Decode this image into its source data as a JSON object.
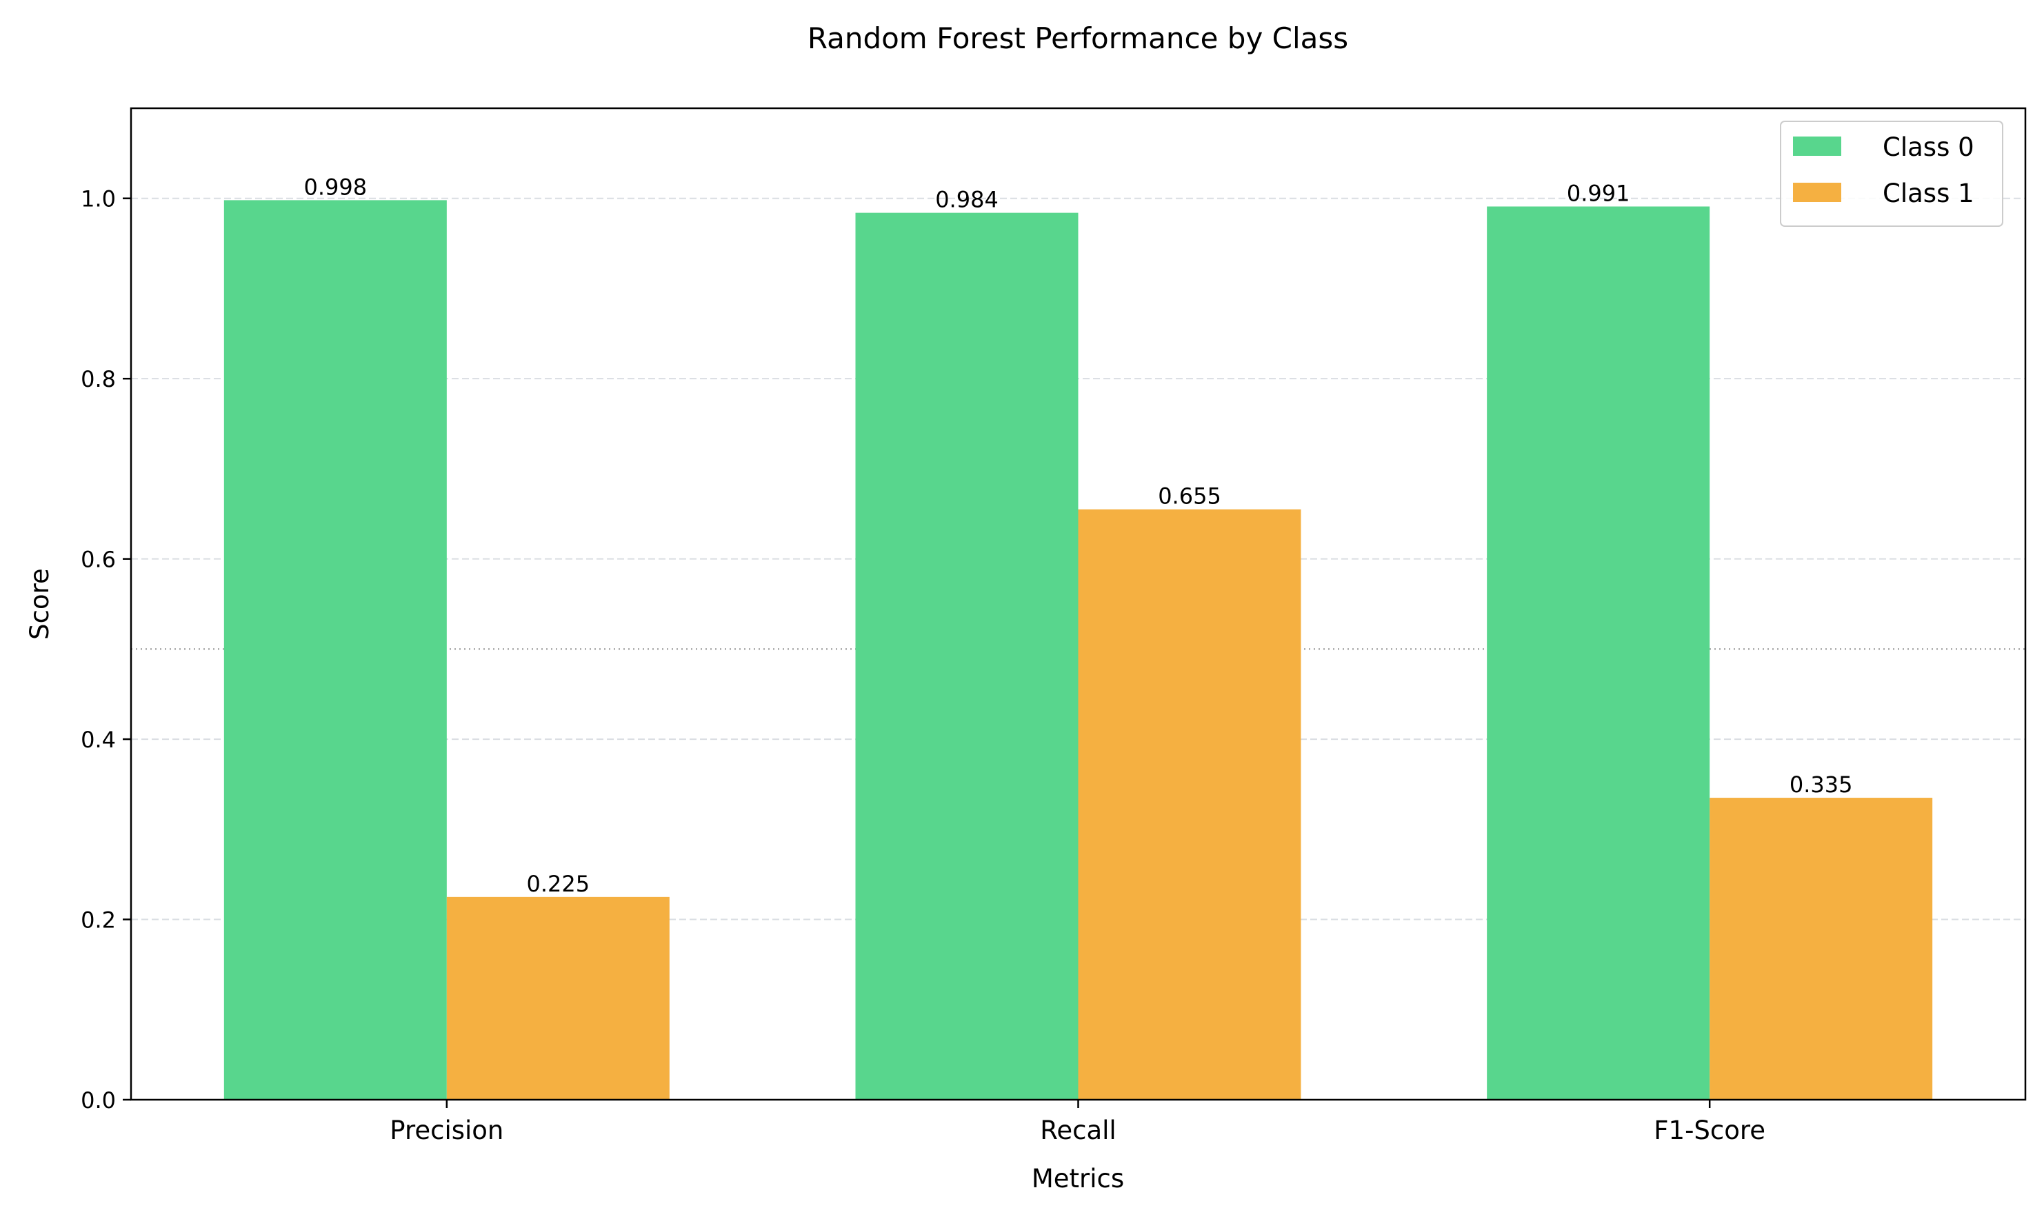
{
  "chart_data": {
    "type": "bar",
    "title": "Random Forest Performance by Class",
    "xlabel": "Metrics",
    "ylabel": "Score",
    "categories": [
      "Precision",
      "Recall",
      "F1-Score"
    ],
    "series": [
      {
        "name": "Class 0",
        "values": [
          0.998,
          0.984,
          0.991
        ],
        "labels": [
          "0.998",
          "0.984",
          "0.991"
        ],
        "color": "#58d68d"
      },
      {
        "name": "Class 1",
        "values": [
          0.225,
          0.655,
          0.335
        ],
        "labels": [
          "0.225",
          "0.655",
          "0.335"
        ],
        "color": "#f5b041"
      }
    ],
    "ylim": [
      0,
      1.1
    ],
    "yticks": [
      0.0,
      0.2,
      0.4,
      0.6,
      0.8,
      1.0
    ],
    "ytick_labels": [
      "0.0",
      "0.2",
      "0.4",
      "0.6",
      "0.8",
      "1.0"
    ],
    "grid": "y-dashed",
    "reference_line": 0.5,
    "legend_position": "top-right"
  }
}
